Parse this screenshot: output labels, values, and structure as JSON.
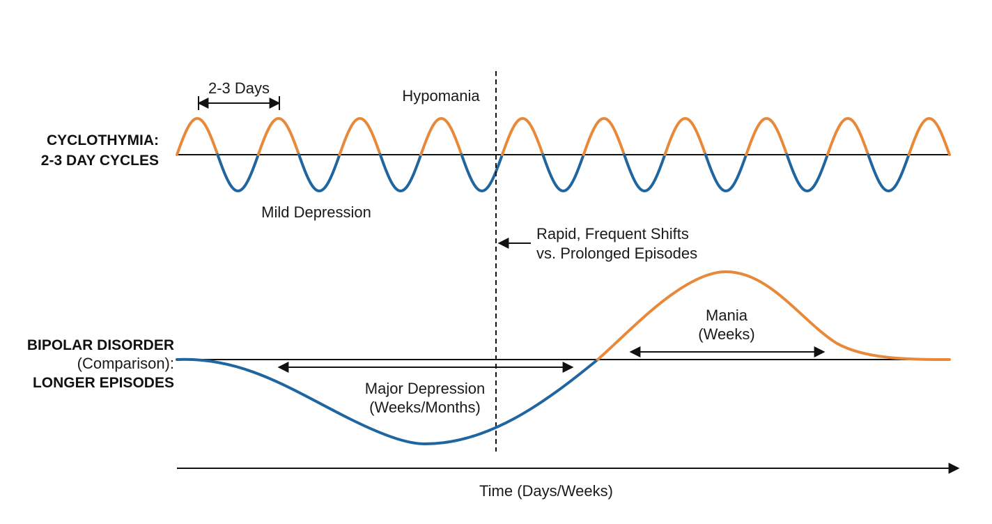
{
  "colors": {
    "elevated": "#E8893A",
    "depressed": "#1F65A0",
    "line": "#111111"
  },
  "cyclothymia": {
    "title_line1": "CYCLOTHYMIA:",
    "title_line2": "2-3 DAY CYCLES",
    "period_label": "2-3 Days",
    "high_label": "Hypomania",
    "low_label": "Mild Depression",
    "cycles_shown": 9.5
  },
  "divider": {
    "label_line1": "Rapid, Frequent Shifts",
    "label_line2": "vs. Prolonged Episodes"
  },
  "bipolar": {
    "title_line1": "BIPOLAR DISORDER",
    "title_line2": "(Comparison):",
    "title_line3": "LONGER EPISODES",
    "low_label_line1": "Major Depression",
    "low_label_line2": "(Weeks/Months)",
    "high_label_line1": "Mania",
    "high_label_line2": "(Weeks)"
  },
  "time_axis": {
    "label": "Time (Days/Weeks)"
  }
}
